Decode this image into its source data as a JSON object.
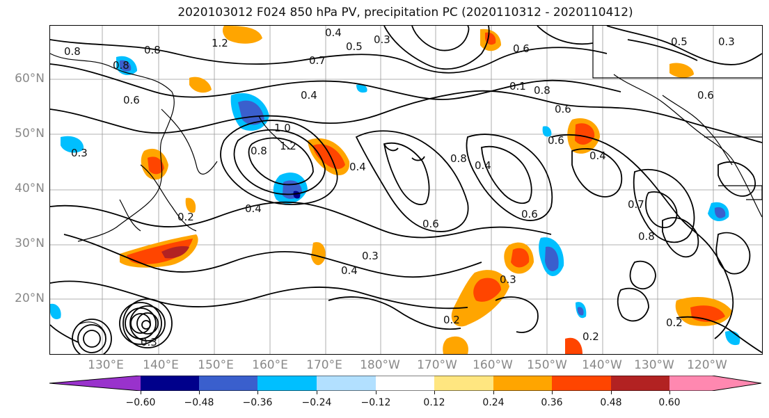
{
  "title": "2020103012 F024 850 hPa PV, precipitation PC (2020110312 - 2020110412)",
  "lat_labels": [
    "60°N",
    "50°N",
    "40°N",
    "30°N",
    "20°N"
  ],
  "lon_labels": [
    "130°E",
    "140°E",
    "150°E",
    "160°E",
    "170°E",
    "180°W",
    "170°W",
    "160°W",
    "150°W",
    "140°W",
    "130°W",
    "120°W"
  ],
  "colorbar": {
    "colors": [
      "#9932cc",
      "#00008b",
      "#3a5fcd",
      "#00bfff",
      "#b2e0ff",
      "#ffffff",
      "#ffe680",
      "#ffa500",
      "#ff4500",
      "#b22222",
      "#ff88b0"
    ],
    "tick_labels": [
      "−0.60",
      "−0.48",
      "−0.36",
      "−0.24",
      "−0.12",
      "0.12",
      "0.24",
      "0.36",
      "0.48",
      "0.60"
    ]
  },
  "contour_labels": [
    "0.8",
    "0.8",
    "1.2",
    "0.8",
    "0.4",
    "0.5",
    "0.3",
    "0.6",
    "0.5",
    "0.7",
    "0.4",
    "0.6",
    "0.1",
    "0.8",
    "0.6",
    "1.0",
    "1.2",
    "0.8",
    "0.4",
    "0.4",
    "0.6",
    "0.4",
    "0.8",
    "0.3",
    "0.4",
    "0.2",
    "0.6",
    "0.3",
    "0.4",
    "0.3",
    "0.2",
    "0.6",
    "0.7",
    "0.8",
    "0.3",
    "0.6",
    "0.2",
    "0.2",
    "0.3"
  ]
}
